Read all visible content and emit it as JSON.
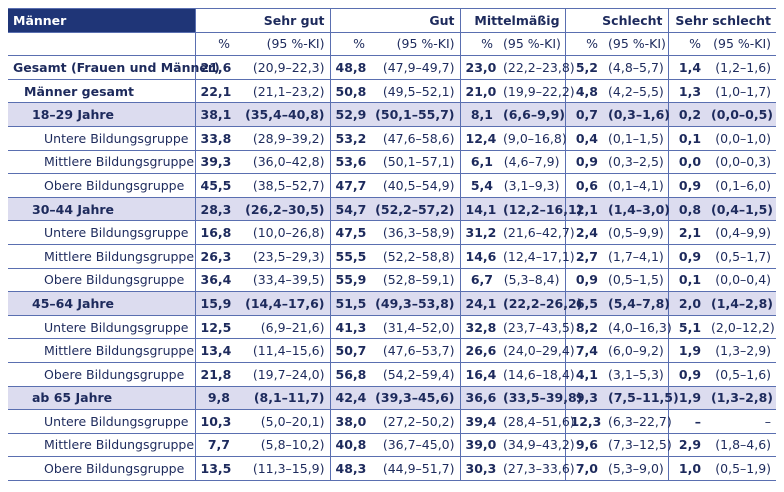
{
  "header": {
    "title": "Männer",
    "columns": [
      "Sehr gut",
      "Gut",
      "Mittelmäßig",
      "Schlecht",
      "Sehr schlecht"
    ]
  },
  "subheader": {
    "pct": "%",
    "ci": "(95 %-KI)"
  },
  "total": {
    "label": "Gesamt (Frauen und Männer)",
    "values": [
      "21,6",
      "(20,9–22,3)",
      "48,8",
      "(47,9–49,7)",
      "23,0",
      "(22,2–23,8)",
      "5,2",
      "(4,8–5,7)",
      "1,4",
      "(1,2–1,6)"
    ]
  },
  "men": {
    "label": "Männer gesamt",
    "values": [
      "22,1",
      "(21,1–23,2)",
      "50,8",
      "(49,5–52,1)",
      "21,0",
      "(19,9–22,2)",
      "4,8",
      "(4,2–5,5)",
      "1,3",
      "(1,0–1,7)"
    ]
  },
  "groups": [
    {
      "row": {
        "label": "18–29 Jahre",
        "values": [
          "38,1",
          "(35,4–40,8)",
          "52,9",
          "(50,1–55,7)",
          "8,1",
          "(6,6–9,9)",
          "0,7",
          "(0,3–1,6)",
          "0,2",
          "(0,0–0,5)"
        ]
      },
      "subrows": [
        {
          "label": "Untere Bildungsgruppe",
          "values": [
            "33,8",
            "(28,9–39,2)",
            "53,2",
            "(47,6–58,6)",
            "12,4",
            "(9,0–16,8)",
            "0,4",
            "(0,1–1,5)",
            "0,1",
            "(0,0–1,0)"
          ]
        },
        {
          "label": "Mittlere Bildungsgruppe",
          "values": [
            "39,3",
            "(36,0–42,8)",
            "53,6",
            "(50,1–57,1)",
            "6,1",
            "(4,6–7,9)",
            "0,9",
            "(0,3–2,5)",
            "0,0",
            "(0,0–0,3)"
          ]
        },
        {
          "label": "Obere Bildungsgruppe",
          "values": [
            "45,5",
            "(38,5–52,7)",
            "47,7",
            "(40,5–54,9)",
            "5,4",
            "(3,1–9,3)",
            "0,6",
            "(0,1–4,1)",
            "0,9",
            "(0,1–6,0)"
          ]
        }
      ]
    },
    {
      "row": {
        "label": "30–44 Jahre",
        "values": [
          "28,3",
          "(26,2–30,5)",
          "54,7",
          "(52,2–57,2)",
          "14,1",
          "(12,2–16,1)",
          "2,1",
          "(1,4–3,0)",
          "0,8",
          "(0,4–1,5)"
        ]
      },
      "subrows": [
        {
          "label": "Untere Bildungsgruppe",
          "values": [
            "16,8",
            "(10,0–26,8)",
            "47,5",
            "(36,3–58,9)",
            "31,2",
            "(21,6–42,7)",
            "2,4",
            "(0,5–9,9)",
            "2,1",
            "(0,4–9,9)"
          ]
        },
        {
          "label": "Mittlere Bildungsgruppe",
          "values": [
            "26,3",
            "(23,5–29,3)",
            "55,5",
            "(52,2–58,8)",
            "14,6",
            "(12,4–17,1)",
            "2,7",
            "(1,7–4,1)",
            "0,9",
            "(0,5–1,7)"
          ]
        },
        {
          "label": "Obere Bildungsgruppe",
          "values": [
            "36,4",
            "(33,4–39,5)",
            "55,9",
            "(52,8–59,1)",
            "6,7",
            "(5,3–8,4)",
            "0,9",
            "(0,5–1,5)",
            "0,1",
            "(0,0–0,4)"
          ]
        }
      ]
    },
    {
      "row": {
        "label": "45–64 Jahre",
        "values": [
          "15,9",
          "(14,4–17,6)",
          "51,5",
          "(49,3–53,8)",
          "24,1",
          "(22,2–26,2)",
          "6,5",
          "(5,4–7,8)",
          "2,0",
          "(1,4–2,8)"
        ]
      },
      "subrows": [
        {
          "label": "Untere Bildungsgruppe",
          "values": [
            "12,5",
            "(6,9–21,6)",
            "41,3",
            "(31,4–52,0)",
            "32,8",
            "(23,7–43,5)",
            "8,2",
            "(4,0–16,3)",
            "5,1",
            "(2,0–12,2)"
          ]
        },
        {
          "label": "Mittlere Bildungsgruppe",
          "values": [
            "13,4",
            "(11,4–15,6)",
            "50,7",
            "(47,6–53,7)",
            "26,6",
            "(24,0–29,4)",
            "7,4",
            "(6,0–9,2)",
            "1,9",
            "(1,3–2,9)"
          ]
        },
        {
          "label": "Obere Bildungsgruppe",
          "values": [
            "21,8",
            "(19,7–24,0)",
            "56,8",
            "(54,2–59,4)",
            "16,4",
            "(14,6–18,4)",
            "4,1",
            "(3,1–5,3)",
            "0,9",
            "(0,5–1,6)"
          ]
        }
      ]
    },
    {
      "row": {
        "label": "ab 65 Jahre",
        "values": [
          "9,8",
          "(8,1–11,7)",
          "42,4",
          "(39,3–45,6)",
          "36,6",
          "(33,5–39,8)",
          "9,3",
          "(7,5–11,5)",
          "1,9",
          "(1,3–2,8)"
        ]
      },
      "subrows": [
        {
          "label": "Untere Bildungsgruppe",
          "values": [
            "10,3",
            "(5,0–20,1)",
            "38,0",
            "(27,2–50,2)",
            "39,4",
            "(28,4–51,6)",
            "12,3",
            "(6,3–22,7)",
            "–",
            "–"
          ]
        },
        {
          "label": "Mittlere Bildungsgruppe",
          "values": [
            "7,7",
            "(5,8–10,2)",
            "40,8",
            "(36,7–45,0)",
            "39,0",
            "(34,9–43,2)",
            "9,6",
            "(7,3–12,5)",
            "2,9",
            "(1,8–4,6)"
          ]
        },
        {
          "label": "Obere Bildungsgruppe",
          "values": [
            "13,5",
            "(11,3–15,9)",
            "48,3",
            "(44,9–51,7)",
            "30,3",
            "(27,3–33,6)",
            "7,0",
            "(5,3–9,0)",
            "1,0",
            "(0,5–1,9)"
          ]
        }
      ]
    }
  ]
}
